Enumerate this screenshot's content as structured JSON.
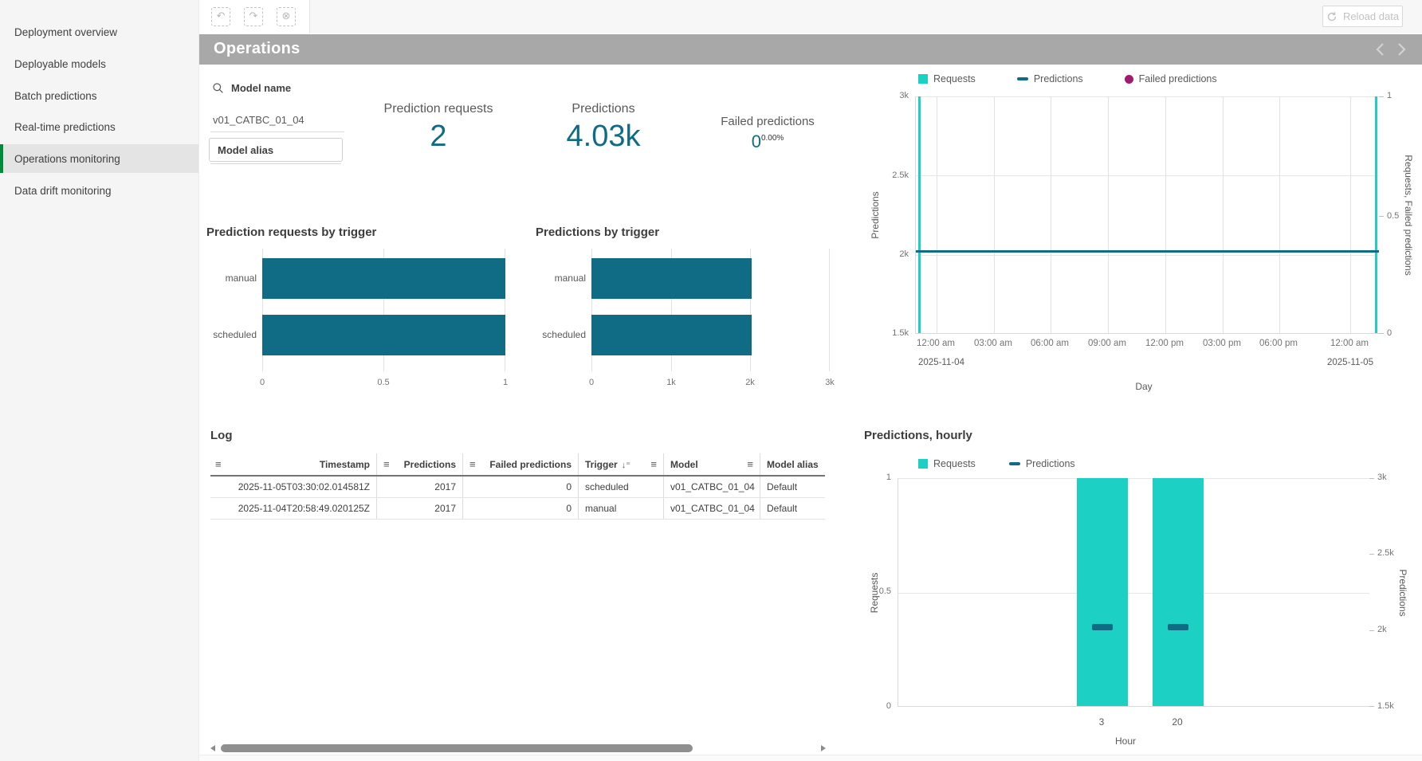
{
  "app": {
    "reload_label": "Reload data"
  },
  "colors": {
    "teal": "#0f6c84",
    "cyan": "#1dd0c4",
    "magenta": "#a11a6d",
    "selected_indicator_green": "#008a3c",
    "sheet_header_gray": "#a8a8a8"
  },
  "sidebar": {
    "items": [
      "Deployment overview",
      "Deployable models",
      "Batch predictions",
      "Real-time predictions",
      "Operations monitoring",
      "Data drift monitoring"
    ],
    "selected_index": 4
  },
  "sheet": {
    "title": "Operations"
  },
  "filters": {
    "model_name_label": "Model name",
    "model_name_value": "v01_CATBC_01_04",
    "model_alias_label": "Model alias"
  },
  "kpis": {
    "prediction_requests": {
      "label": "Prediction requests",
      "value": "2"
    },
    "predictions": {
      "label": "Predictions",
      "value": "4.03k"
    },
    "failed_predictions": {
      "label": "Failed predictions",
      "value": "0",
      "percent": "0.00%"
    }
  },
  "chart_data": [
    {
      "id": "prediction_requests_by_trigger",
      "type": "bar",
      "orientation": "horizontal",
      "title": "Prediction requests by trigger",
      "categories": [
        "manual",
        "scheduled"
      ],
      "values": [
        1,
        1
      ],
      "x_ticks": [
        "0",
        "0.5",
        "1"
      ],
      "xlim": [
        0,
        1
      ],
      "bar_color": "#0f6c84",
      "grid": true
    },
    {
      "id": "predictions_by_trigger",
      "type": "bar",
      "orientation": "horizontal",
      "title": "Predictions by trigger",
      "categories": [
        "manual",
        "scheduled"
      ],
      "values": [
        2017,
        2017
      ],
      "x_ticks": [
        "0",
        "1k",
        "2k",
        "3k"
      ],
      "xlim": [
        0,
        3000
      ],
      "bar_color": "#0f6c84",
      "grid": true
    },
    {
      "id": "requests_predictions_by_day",
      "type": "line",
      "xlabel": "Day",
      "x_ticks": [
        "12:00 am",
        "03:00 am",
        "06:00 am",
        "09:00 am",
        "12:00 pm",
        "03:00 pm",
        "06:00 pm",
        "12:00 am"
      ],
      "x_dates": [
        "2025-11-04",
        "2025-11-05"
      ],
      "y_left_label": "Predictions",
      "y_left_ticks": [
        "3k",
        "2.5k",
        "2k",
        "1.5k"
      ],
      "y_left_range": [
        1500,
        3000
      ],
      "y_right_label": "Requests, Failed predictions",
      "y_right_ticks": [
        "1",
        "0.5",
        "0"
      ],
      "y_right_range": [
        0,
        1
      ],
      "legend_position": "top",
      "grid": true,
      "series": [
        {
          "name": "Requests",
          "axis": "right",
          "color": "#1dd0c4",
          "points": [
            {
              "x": "2025-11-04T20:58",
              "y": 1
            },
            {
              "x": "2025-11-05T03:30",
              "y": 1
            }
          ]
        },
        {
          "name": "Predictions",
          "axis": "left",
          "color": "#0f6c84",
          "points": [
            {
              "x": "2025-11-04T20:58",
              "y": 2017
            },
            {
              "x": "2025-11-05T03:30",
              "y": 2017
            }
          ]
        },
        {
          "name": "Failed predictions",
          "axis": "right",
          "color": "#a11a6d",
          "points": [
            {
              "x": "2025-11-04T20:58",
              "y": 0
            },
            {
              "x": "2025-11-05T03:30",
              "y": 0
            }
          ]
        }
      ]
    },
    {
      "id": "predictions_hourly",
      "type": "bar",
      "title": "Predictions, hourly",
      "xlabel": "Hour",
      "categories": [
        "3",
        "20"
      ],
      "y_left_label": "Requests",
      "y_left_ticks": [
        "1",
        "0.5",
        "0"
      ],
      "y_left_range": [
        0,
        1
      ],
      "y_right_label": "Predictions",
      "y_right_ticks": [
        "3k",
        "2.5k",
        "2k",
        "1.5k"
      ],
      "y_right_range": [
        1500,
        3000
      ],
      "legend_position": "top",
      "grid": true,
      "series": [
        {
          "name": "Requests",
          "axis": "left",
          "color": "#1dd0c4",
          "values": [
            1,
            1
          ]
        },
        {
          "name": "Predictions",
          "axis": "right",
          "color": "#0f6c84",
          "values": [
            2017,
            2017
          ]
        }
      ]
    }
  ],
  "log": {
    "title": "Log",
    "columns": [
      "Timestamp",
      "Predictions",
      "Failed predictions",
      "Trigger",
      "Model",
      "Model alias"
    ],
    "rows": [
      {
        "timestamp": "2025-11-05T03:30:02.014581Z",
        "predictions": "2017",
        "failed": "0",
        "trigger": "scheduled",
        "model": "v01_CATBC_01_04",
        "alias": "Default"
      },
      {
        "timestamp": "2025-11-04T20:58:49.020125Z",
        "predictions": "2017",
        "failed": "0",
        "trigger": "manual",
        "model": "v01_CATBC_01_04",
        "alias": "Default"
      }
    ]
  }
}
